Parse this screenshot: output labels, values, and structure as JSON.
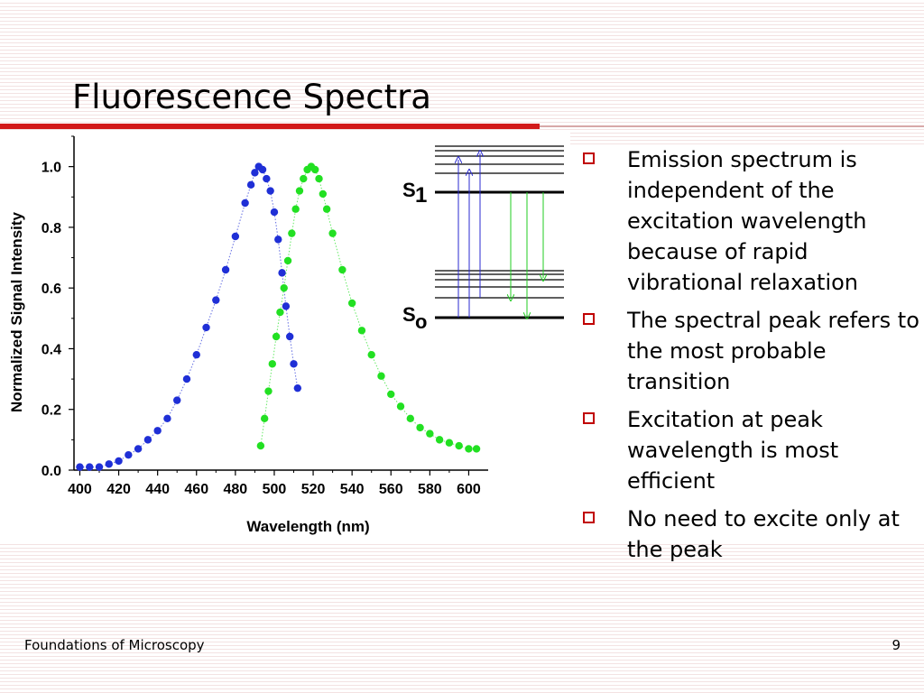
{
  "slide": {
    "title": "Fluorescence Spectra",
    "footer_left": "Foundations of Microscopy",
    "page_number": "9"
  },
  "bullets": [
    "Emission spectrum is independent of the excitation wavelength because of rapid vibrational relaxation",
    "The spectral peak refers to the most probable transition",
    "Excitation at peak wavelength is most efficient",
    "No need to excite only at the peak"
  ],
  "jablonski": {
    "s1_letter": "S",
    "s1_subscript": "1",
    "s0_letter": "S",
    "s0_subscript": "o",
    "absorption_color": "#2a2ad0",
    "emission_color": "#22cc22"
  },
  "chart_data": {
    "type": "scatter",
    "xlabel": "Wavelength (nm)",
    "ylabel": "Normalized Signal Intensity",
    "xlim": [
      397,
      610
    ],
    "ylim": [
      0,
      1.1
    ],
    "x_ticks": [
      400,
      420,
      440,
      460,
      480,
      500,
      520,
      540,
      560,
      580,
      600
    ],
    "y_ticks": [
      0.0,
      0.2,
      0.4,
      0.6,
      0.8,
      1.0
    ],
    "y_tick_labels": [
      "0.0",
      "0.2",
      "0.4",
      "0.6",
      "0.8",
      "1.0"
    ],
    "grid": false,
    "series": [
      {
        "color": "#1f2fd6",
        "x": [
          400,
          405,
          410,
          415,
          420,
          425,
          430,
          435,
          440,
          445,
          450,
          455,
          460,
          465,
          470,
          475,
          480,
          485,
          488,
          490,
          492,
          494,
          496,
          498,
          500,
          502,
          504,
          506,
          508,
          510,
          512
        ],
        "y": [
          0.01,
          0.01,
          0.01,
          0.02,
          0.03,
          0.05,
          0.07,
          0.1,
          0.13,
          0.17,
          0.23,
          0.3,
          0.38,
          0.47,
          0.56,
          0.66,
          0.77,
          0.88,
          0.94,
          0.98,
          1.0,
          0.99,
          0.96,
          0.92,
          0.85,
          0.76,
          0.65,
          0.54,
          0.44,
          0.35,
          0.27
        ]
      },
      {
        "color": "#22e022",
        "x": [
          493,
          495,
          497,
          499,
          501,
          503,
          505,
          507,
          509,
          511,
          513,
          515,
          517,
          519,
          521,
          523,
          525,
          527,
          530,
          535,
          540,
          545,
          550,
          555,
          560,
          565,
          570,
          575,
          580,
          585,
          590,
          595,
          600,
          604
        ],
        "y": [
          0.08,
          0.17,
          0.26,
          0.35,
          0.44,
          0.52,
          0.6,
          0.69,
          0.78,
          0.86,
          0.92,
          0.96,
          0.99,
          1.0,
          0.99,
          0.96,
          0.91,
          0.86,
          0.78,
          0.66,
          0.55,
          0.46,
          0.38,
          0.31,
          0.25,
          0.21,
          0.17,
          0.14,
          0.12,
          0.1,
          0.09,
          0.08,
          0.07,
          0.07
        ]
      }
    ]
  }
}
